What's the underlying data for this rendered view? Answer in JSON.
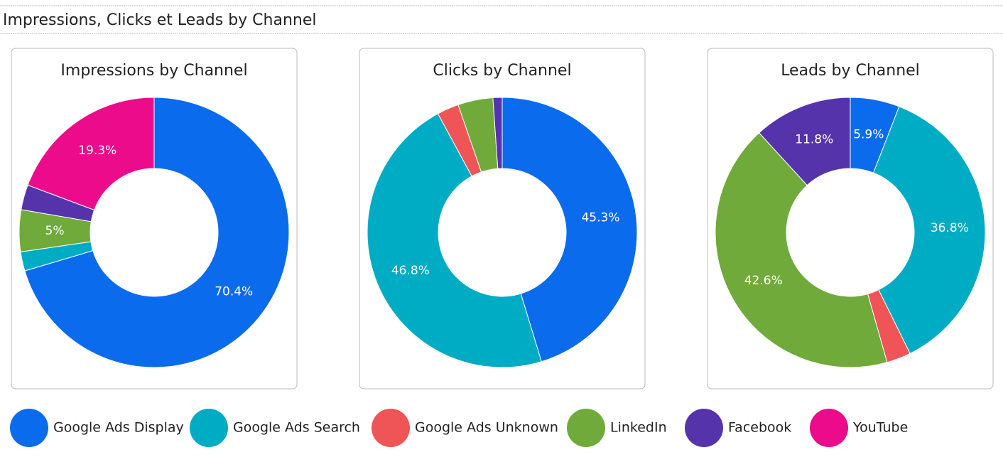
{
  "header": {
    "title": "Impressions, Clicks et Leads by Channel"
  },
  "legend": {
    "categories": [
      "Google Ads Display",
      "Google Ads Search",
      "Google Ads Unknown",
      "LinkedIn",
      "Facebook",
      "YouTube"
    ],
    "colors": [
      "#0b6bed",
      "#00abc4",
      "#ef5457",
      "#6faa3a",
      "#5533ab",
      "#ec0b8b"
    ]
  },
  "chart_data": [
    {
      "type": "pie",
      "title": "Impressions by Channel",
      "values": [
        70.4,
        2.3,
        0,
        5,
        3,
        19.3
      ],
      "value_labels": [
        "70.4%",
        null,
        null,
        "5%",
        null,
        "19.3%"
      ]
    },
    {
      "type": "pie",
      "title": "Clicks by Channel",
      "values": [
        45.3,
        46.8,
        2.6,
        4.2,
        1.1,
        0
      ],
      "value_labels": [
        "45.3%",
        "46.8%",
        null,
        null,
        null,
        null
      ]
    },
    {
      "type": "pie",
      "title": "Leads by Channel",
      "values": [
        5.9,
        36.8,
        2.9,
        42.6,
        11.8,
        0
      ],
      "value_labels": [
        "5.9%",
        "36.8%",
        null,
        "42.6%",
        "11.8%",
        null
      ]
    }
  ]
}
